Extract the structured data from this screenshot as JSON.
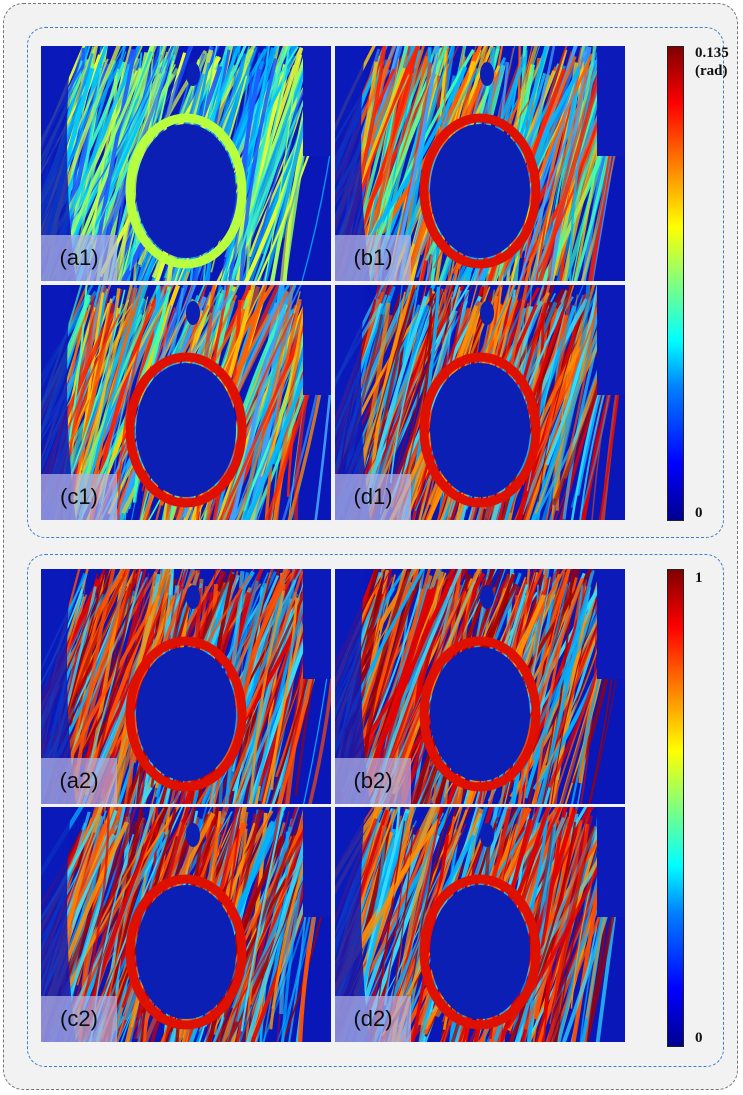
{
  "top_group": {
    "panels": [
      {
        "label": "(a1)",
        "style": "low"
      },
      {
        "label": "(b1)",
        "style": "mid"
      },
      {
        "label": "(c1)",
        "style": "mid"
      },
      {
        "label": "(d1)",
        "style": "high"
      }
    ],
    "colorbar": {
      "max_label": "0.135",
      "unit_label": "(rad)",
      "min_label": "0",
      "colormap": "jet"
    }
  },
  "bottom_group": {
    "panels": [
      {
        "label": "(a2)",
        "style": "high"
      },
      {
        "label": "(b2)",
        "style": "high"
      },
      {
        "label": "(c2)",
        "style": "high"
      },
      {
        "label": "(d2)",
        "style": "high"
      }
    ],
    "colorbar": {
      "max_label": "1",
      "min_label": "0",
      "colormap": "jet"
    }
  },
  "colors": {
    "frame_border": "#6f7680",
    "group_border": "#3d7fc8",
    "background": "#f2f2f2",
    "label_box": "#b2b2e6"
  }
}
